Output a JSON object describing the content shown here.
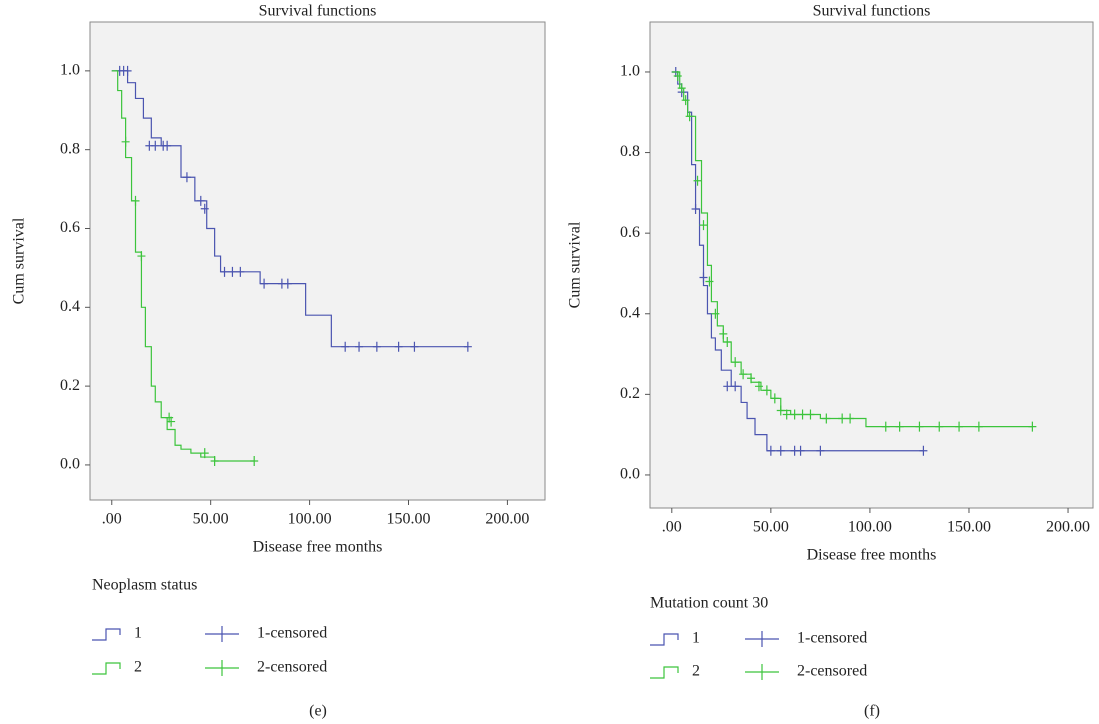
{
  "chart_data": [
    {
      "type": "line",
      "title": "Survival functions",
      "xlabel": "Disease free months",
      "ylabel": "Cum survival",
      "legend_title": "Neoplasm status",
      "caption": "(e)",
      "xlim": [
        -11,
        219
      ],
      "ylim": [
        -0.089,
        1.124
      ],
      "xticks": [
        {
          "value": 0,
          "label": ".00"
        },
        {
          "value": 50,
          "label": "50.00"
        },
        {
          "value": 100,
          "label": "100.00"
        },
        {
          "value": 150,
          "label": "150.00"
        },
        {
          "value": 200,
          "label": "200.00"
        }
      ],
      "yticks": [
        {
          "value": 0,
          "label": "0.0"
        },
        0.2,
        0.4,
        0.6,
        0.8,
        {
          "value": 1,
          "label": "1.0"
        }
      ],
      "series": [
        {
          "name": "1",
          "mark": "step",
          "color": "#4b55b0",
          "x": [
            0,
            8,
            12,
            16,
            20,
            25,
            35,
            42,
            48,
            52,
            55,
            75,
            98,
            111,
            180
          ],
          "values": [
            1.0,
            0.97,
            0.93,
            0.88,
            0.83,
            0.81,
            0.73,
            0.67,
            0.6,
            0.53,
            0.49,
            0.46,
            0.38,
            0.3,
            0.3
          ]
        },
        {
          "name": "1-censored",
          "mark": "plus",
          "color": "#4b55b0",
          "x": [
            4,
            6,
            8,
            19,
            22,
            26,
            28,
            38,
            45,
            47,
            57,
            61,
            65,
            77,
            86,
            89,
            118,
            125,
            134,
            145,
            153,
            180
          ],
          "values": [
            1.0,
            1.0,
            1.0,
            0.81,
            0.81,
            0.81,
            0.81,
            0.73,
            0.67,
            0.65,
            0.49,
            0.49,
            0.49,
            0.46,
            0.46,
            0.46,
            0.3,
            0.3,
            0.3,
            0.3,
            0.3,
            0.3
          ]
        },
        {
          "name": "2",
          "mark": "step",
          "color": "#3cc43c",
          "x": [
            0,
            3,
            5,
            7,
            10,
            12,
            15,
            17,
            20,
            22,
            25,
            28,
            32,
            35,
            40,
            45,
            52,
            72
          ],
          "values": [
            1.0,
            0.95,
            0.88,
            0.78,
            0.67,
            0.54,
            0.4,
            0.3,
            0.2,
            0.16,
            0.12,
            0.09,
            0.05,
            0.04,
            0.03,
            0.02,
            0.01,
            0.01
          ]
        },
        {
          "name": "2-censored",
          "mark": "plus",
          "color": "#3cc43c",
          "x": [
            7,
            12,
            15,
            29,
            30,
            47,
            52,
            72
          ],
          "values": [
            0.82,
            0.67,
            0.53,
            0.12,
            0.11,
            0.03,
            0.01,
            0.01
          ]
        }
      ]
    },
    {
      "type": "line",
      "title": "Survival functions",
      "xlabel": "Disease free months",
      "ylabel": "Cum survival",
      "legend_title": "Mutation count 30",
      "caption": "(f)",
      "xlim": [
        -11,
        212.6
      ],
      "ylim": [
        -0.082,
        1.124
      ],
      "xticks": [
        {
          "value": 0,
          "label": ".00"
        },
        {
          "value": 50,
          "label": "50.00"
        },
        {
          "value": 100,
          "label": "100.00"
        },
        {
          "value": 150,
          "label": "150.00"
        },
        {
          "value": 200,
          "label": "200.00"
        }
      ],
      "yticks": [
        {
          "value": 0,
          "label": "0.0"
        },
        0.2,
        0.4,
        0.6,
        0.8,
        {
          "value": 1,
          "label": "1.0"
        }
      ],
      "series": [
        {
          "name": "1",
          "mark": "step",
          "color": "#4b55b0",
          "x": [
            0,
            3,
            5,
            8,
            10,
            12,
            14,
            16,
            18,
            20,
            22,
            25,
            30,
            35,
            38,
            42,
            48,
            127
          ],
          "values": [
            1.0,
            0.97,
            0.95,
            0.9,
            0.77,
            0.66,
            0.57,
            0.47,
            0.4,
            0.34,
            0.31,
            0.26,
            0.22,
            0.18,
            0.14,
            0.1,
            0.06,
            0.06
          ]
        },
        {
          "name": "1-censored",
          "mark": "plus",
          "color": "#4b55b0",
          "x": [
            2,
            5,
            12,
            16,
            28,
            32,
            50,
            55,
            62,
            65,
            75,
            127
          ],
          "values": [
            1.0,
            0.95,
            0.66,
            0.49,
            0.22,
            0.22,
            0.06,
            0.06,
            0.06,
            0.06,
            0.06,
            0.06
          ]
        },
        {
          "name": "2",
          "mark": "step",
          "color": "#3cc43c",
          "x": [
            0,
            4,
            6,
            8,
            12,
            15,
            18,
            20,
            23,
            26,
            30,
            35,
            40,
            45,
            50,
            55,
            60,
            75,
            98,
            182
          ],
          "values": [
            1.0,
            0.96,
            0.93,
            0.89,
            0.78,
            0.65,
            0.52,
            0.43,
            0.37,
            0.33,
            0.28,
            0.25,
            0.23,
            0.21,
            0.19,
            0.16,
            0.15,
            0.14,
            0.12,
            0.12
          ]
        },
        {
          "name": "2-censored",
          "mark": "plus",
          "color": "#3cc43c",
          "x": [
            3,
            5,
            7,
            9,
            13,
            16,
            19,
            22,
            26,
            28,
            32,
            36,
            40,
            44,
            48,
            52,
            55,
            58,
            62,
            66,
            70,
            78,
            86,
            90,
            108,
            115,
            125,
            135,
            145,
            155,
            182
          ],
          "values": [
            0.99,
            0.96,
            0.93,
            0.89,
            0.73,
            0.62,
            0.48,
            0.4,
            0.35,
            0.33,
            0.28,
            0.25,
            0.24,
            0.22,
            0.21,
            0.19,
            0.16,
            0.15,
            0.15,
            0.15,
            0.15,
            0.14,
            0.14,
            0.14,
            0.12,
            0.12,
            0.12,
            0.12,
            0.12,
            0.12,
            0.12
          ]
        }
      ]
    }
  ]
}
